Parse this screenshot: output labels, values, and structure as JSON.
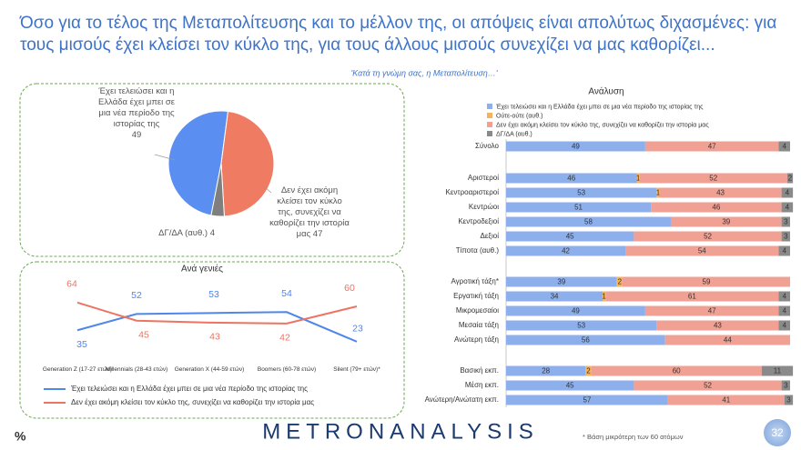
{
  "header": {
    "title": "Όσο για το τέλος της Μεταπολίτευσης και το μέλλον της, οι απόψεις είναι απολύτως διχασμένες: για τους μισούς έχει κλείσει τον κύκλο της, για τους άλλους μισούς συνεχίζει να μας καθορίζει...",
    "subtitle": "'Κατά τη γνώμη σας, η Μεταπολίτευση…'"
  },
  "chart_data": [
    {
      "type": "pie",
      "categories": [
        "Έχει τελειώσει και η Ελλάδα έχει μπει σε μια νέα περίοδο της ιστορίας της",
        "Δεν έχει ακόμη κλείσει τον κύκλο της, συνεχίζει να καθορίζει την ιστορία μας",
        "ΔΓ/ΔΑ (αυθ.)"
      ],
      "values": [
        49,
        47,
        4
      ],
      "colors": [
        "#5a8ef0",
        "#ef7b62",
        "#7f7f7f"
      ]
    },
    {
      "type": "line",
      "title": "Ανά γενιές",
      "categories": [
        "Generation Z (17-27 ετών)",
        "Millennials (28-43 ετών)",
        "Generation X (44-59 ετών)",
        "Boomers (60-78 ετών)",
        "Silent (79+ ετών)*"
      ],
      "series": [
        {
          "name": "Έχει τελειώσει και η Ελλάδα έχει μπει σε μια νέα περίοδο της ιστορίας της",
          "color": "#4f86ec",
          "values": [
            35,
            52,
            53,
            54,
            23
          ]
        },
        {
          "name": "Δεν έχει ακόμη κλείσει τον κύκλο της, συνεχίζει να καθορίζει την ιστορία μας",
          "color": "#ec7461",
          "values": [
            64,
            45,
            43,
            42,
            60
          ]
        }
      ]
    },
    {
      "type": "bar",
      "orientation": "horizontal",
      "stacked": true,
      "title": "Ανάλυση",
      "categories": [
        "Σύνολο",
        "Αριστεροί",
        "Κεντροαριστεροί",
        "Κεντρώοι",
        "Κεντροδεξιοί",
        "Δεξιοί",
        "Τίποτα (αυθ.)",
        "Αγροτική τάξη*",
        "Εργατική τάξη",
        "Μικρομεσαίοι",
        "Μεσαία τάξη",
        "Ανώτερη τάξη",
        "Βασική εκπ.",
        "Μέση εκπ.",
        "Ανώτερη/Ανώτατη εκπ."
      ],
      "series": [
        {
          "name": "Έχει τελειώσει και η Ελλάδα έχει μπει σε μια νέα περίοδο της ιστορίας της",
          "color": "#8db0ec",
          "values": [
            49,
            46,
            53,
            51,
            58,
            45,
            42,
            39,
            34,
            49,
            53,
            56,
            28,
            45,
            57
          ]
        },
        {
          "name": "Ούτε-ούτε (αυθ.)",
          "color": "#f6b25a",
          "values": [
            null,
            1,
            1,
            null,
            null,
            null,
            null,
            2,
            1,
            null,
            null,
            null,
            2,
            null,
            null
          ]
        },
        {
          "name": "Δεν έχει ακόμη κλείσει τον κύκλο της, συνεχίζει να καθορίζει την ιστορία μας",
          "color": "#f0a193",
          "values": [
            47,
            52,
            43,
            46,
            39,
            52,
            54,
            59,
            61,
            47,
            43,
            44,
            60,
            52,
            41
          ]
        },
        {
          "name": "ΔΓ/ΔΑ (αυθ.)",
          "color": "#8a8a8a",
          "values": [
            4,
            2,
            4,
            4,
            3,
            3,
            4,
            null,
            4,
            4,
            4,
            null,
            11,
            3,
            3
          ]
        }
      ]
    }
  ],
  "footer": {
    "unit": "%",
    "logo": "METRONANALYSIS",
    "note": "* Βάση μικρότερη των 60 ατόμων",
    "page": "32"
  }
}
